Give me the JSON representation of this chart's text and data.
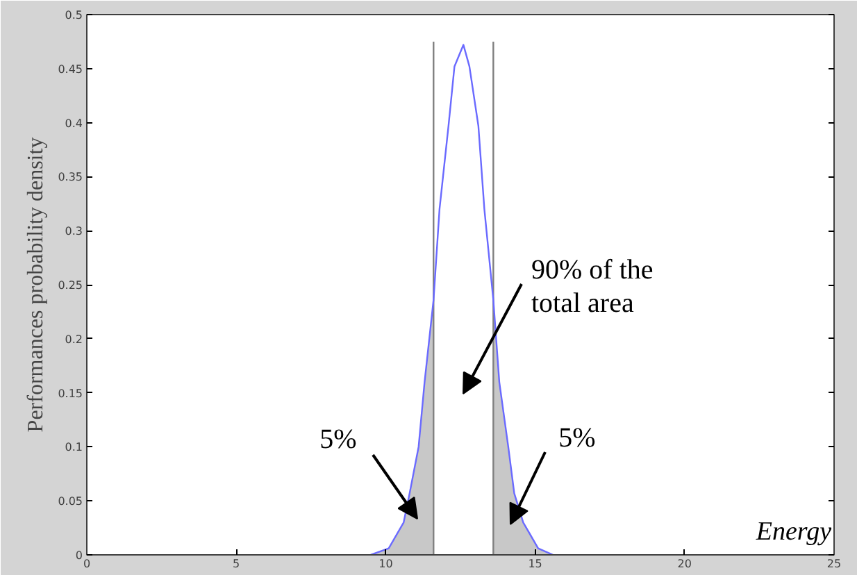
{
  "chart_data": {
    "type": "line",
    "xlabel": "Energy",
    "ylabel": "Performances probability density",
    "xlim": [
      0,
      25
    ],
    "xticks": [
      0,
      5,
      10,
      15,
      20,
      25
    ],
    "ylim": [
      0,
      0.5
    ],
    "yticks": [
      0,
      0.05,
      0.1,
      0.15,
      0.2,
      0.25,
      0.3,
      0.35,
      0.4,
      0.45,
      0.5
    ],
    "marker": "none",
    "line_style": "solid",
    "series": [
      {
        "type": "area",
        "color": "#c8c8c8",
        "x": [
          9.5,
          10.1,
          10.6,
          10.8,
          11.1,
          11.3,
          11.6
        ],
        "values": [
          0,
          0.006,
          0.03,
          0.057,
          0.1,
          0.16,
          0.236
        ]
      },
      {
        "type": "area",
        "color": "#c8c8c8",
        "x": [
          13.6,
          13.8,
          14.1,
          14.3,
          14.6,
          15.1,
          15.6
        ],
        "values": [
          0.236,
          0.16,
          0.1,
          0.057,
          0.03,
          0.006,
          0
        ]
      },
      {
        "color": "#808080",
        "x": [
          11.6,
          11.6
        ],
        "values": [
          0,
          0.475
        ]
      },
      {
        "color": "#808080",
        "x": [
          13.6,
          13.6
        ],
        "values": [
          0,
          0.475
        ]
      },
      {
        "color": "#6a6aff",
        "x": [
          9.5,
          10.1,
          10.6,
          10.8,
          11.1,
          11.3,
          11.6,
          11.8,
          12.1,
          12.3,
          12.6,
          12.8,
          13.1,
          13.3,
          13.6,
          13.8,
          14.1,
          14.3,
          14.6,
          15.1,
          15.6
        ],
        "values": [
          0,
          0.006,
          0.03,
          0.057,
          0.1,
          0.16,
          0.236,
          0.32,
          0.397,
          0.452,
          0.472,
          0.452,
          0.397,
          0.32,
          0.236,
          0.16,
          0.1,
          0.057,
          0.03,
          0.006,
          0
        ]
      }
    ],
    "annotations": [
      "5%",
      "90% of the total area",
      "5%"
    ]
  }
}
